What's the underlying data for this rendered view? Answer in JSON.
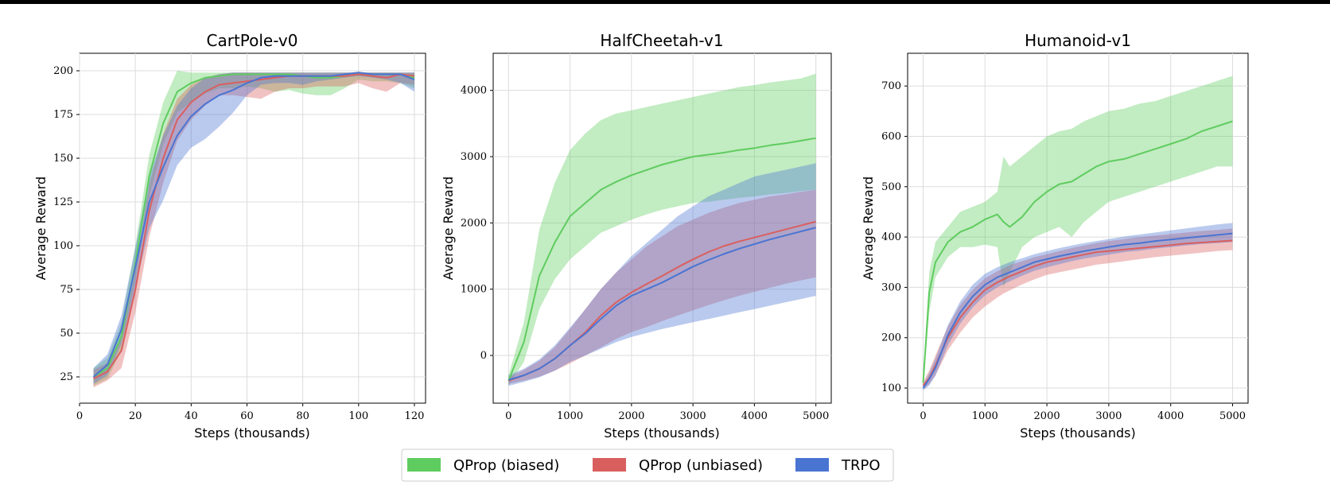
{
  "legend": {
    "placement": "bottom-center",
    "entries": [
      {
        "label": "QProp (biased)",
        "color": "#5fcc5f"
      },
      {
        "label": "QProp (unbiased)",
        "color": "#d95f5f"
      },
      {
        "label": "TRPO",
        "color": "#4a74d2"
      }
    ]
  },
  "chart_data": [
    {
      "type": "line",
      "title": "CartPole-v0",
      "xlabel": "Steps (thousands)",
      "ylabel": "Average Reward",
      "xlim": [
        0,
        124
      ],
      "ylim": [
        10,
        210
      ],
      "xticks": [
        0,
        20,
        40,
        60,
        80,
        100,
        120
      ],
      "yticks": [
        25,
        50,
        75,
        100,
        125,
        150,
        175,
        200
      ],
      "grid": true,
      "x": [
        5,
        10,
        15,
        20,
        25,
        30,
        35,
        40,
        45,
        50,
        55,
        60,
        65,
        70,
        75,
        80,
        85,
        90,
        95,
        100,
        105,
        110,
        115,
        120
      ],
      "series": [
        {
          "name": "QProp (biased)",
          "color": "#5fcc5f",
          "values": [
            25,
            30,
            48,
            90,
            140,
            170,
            188,
            193,
            196,
            197,
            198,
            198,
            198,
            198,
            198,
            197,
            196,
            196,
            197,
            198,
            198,
            198,
            198,
            196
          ],
          "lower": [
            20,
            24,
            40,
            80,
            128,
            158,
            176,
            182,
            187,
            190,
            190,
            191,
            190,
            188,
            189,
            187,
            186,
            186,
            190,
            195,
            194,
            194,
            193,
            190
          ],
          "upper": [
            30,
            36,
            56,
            100,
            152,
            182,
            200,
            199,
            199,
            199,
            199,
            199,
            199,
            199,
            199,
            199,
            199,
            199,
            199,
            199,
            199,
            199,
            199,
            199
          ]
        },
        {
          "name": "QProp (unbiased)",
          "color": "#d95f5f",
          "values": [
            24,
            28,
            40,
            75,
            120,
            150,
            172,
            182,
            188,
            192,
            193,
            194,
            195,
            196,
            197,
            197,
            197,
            197,
            197,
            198,
            197,
            196,
            198,
            197
          ],
          "lower": [
            19,
            23,
            30,
            62,
            105,
            136,
            160,
            172,
            180,
            186,
            186,
            185,
            184,
            188,
            190,
            190,
            191,
            191,
            191,
            193,
            190,
            188,
            193,
            192
          ],
          "upper": [
            29,
            33,
            48,
            85,
            135,
            164,
            184,
            192,
            196,
            198,
            199,
            199,
            199,
            199,
            199,
            199,
            199,
            199,
            199,
            199,
            199,
            199,
            199,
            199
          ]
        },
        {
          "name": "TRPO",
          "color": "#4a74d2",
          "values": [
            25,
            32,
            52,
            88,
            125,
            145,
            163,
            174,
            181,
            186,
            189,
            193,
            196,
            197,
            197,
            197,
            197,
            197,
            198,
            199,
            198,
            198,
            198,
            195
          ],
          "lower": [
            21,
            26,
            44,
            76,
            110,
            126,
            146,
            156,
            161,
            168,
            176,
            186,
            192,
            193,
            193,
            192,
            194,
            195,
            196,
            197,
            196,
            195,
            193,
            188
          ],
          "upper": [
            30,
            38,
            60,
            99,
            140,
            163,
            180,
            190,
            196,
            198,
            199,
            199,
            199,
            199,
            199,
            199,
            199,
            199,
            199,
            199,
            199,
            199,
            199,
            199
          ]
        }
      ]
    },
    {
      "type": "line",
      "title": "HalfCheetah-v1",
      "xlabel": "Steps (thousands)",
      "ylabel": "Average Reward",
      "xlim": [
        -250,
        5250
      ],
      "ylim": [
        -720,
        4560
      ],
      "xticks": [
        0,
        1000,
        2000,
        3000,
        4000,
        5000
      ],
      "yticks": [
        0,
        1000,
        2000,
        3000,
        4000
      ],
      "grid": true,
      "x": [
        0,
        250,
        500,
        750,
        1000,
        1250,
        1500,
        1750,
        2000,
        2250,
        2500,
        2750,
        3000,
        3250,
        3500,
        3750,
        4000,
        4250,
        4500,
        4750,
        5000
      ],
      "series": [
        {
          "name": "QProp (biased)",
          "color": "#5fcc5f",
          "values": [
            -380,
            200,
            1200,
            1700,
            2100,
            2300,
            2500,
            2620,
            2720,
            2800,
            2880,
            2940,
            3000,
            3030,
            3060,
            3100,
            3130,
            3170,
            3200,
            3240,
            3280
          ],
          "lower": [
            -450,
            -100,
            700,
            1150,
            1450,
            1650,
            1850,
            1950,
            2050,
            2130,
            2200,
            2250,
            2300,
            2320,
            2350,
            2380,
            2400,
            2430,
            2450,
            2480,
            2500
          ],
          "upper": [
            -300,
            500,
            1900,
            2600,
            3100,
            3350,
            3550,
            3650,
            3700,
            3750,
            3800,
            3850,
            3900,
            3950,
            4000,
            4050,
            4080,
            4120,
            4150,
            4180,
            4250
          ]
        },
        {
          "name": "QProp (unbiased)",
          "color": "#d95f5f",
          "values": [
            -380,
            -300,
            -200,
            -50,
            150,
            350,
            600,
            800,
            950,
            1080,
            1200,
            1330,
            1450,
            1560,
            1650,
            1720,
            1780,
            1840,
            1900,
            1960,
            2020
          ],
          "lower": [
            -430,
            -380,
            -320,
            -230,
            -120,
            0,
            120,
            250,
            350,
            430,
            520,
            600,
            680,
            760,
            830,
            900,
            960,
            1020,
            1080,
            1130,
            1180
          ],
          "upper": [
            -330,
            -220,
            -80,
            120,
            400,
            700,
            1000,
            1250,
            1450,
            1650,
            1800,
            1950,
            2050,
            2150,
            2230,
            2300,
            2350,
            2400,
            2430,
            2470,
            2500
          ]
        },
        {
          "name": "TRPO",
          "color": "#4a74d2",
          "values": [
            -370,
            -300,
            -200,
            -50,
            150,
            330,
            550,
            750,
            900,
            1000,
            1100,
            1220,
            1340,
            1440,
            1530,
            1610,
            1680,
            1750,
            1810,
            1870,
            1930
          ],
          "lower": [
            -460,
            -400,
            -330,
            -230,
            -100,
            0,
            100,
            200,
            280,
            340,
            400,
            450,
            500,
            550,
            600,
            650,
            700,
            750,
            800,
            850,
            900
          ],
          "upper": [
            -300,
            -200,
            -60,
            150,
            420,
            700,
            1000,
            1250,
            1500,
            1700,
            1900,
            2100,
            2250,
            2400,
            2500,
            2600,
            2700,
            2750,
            2800,
            2850,
            2900
          ]
        }
      ]
    },
    {
      "type": "line",
      "title": "Humanoid-v1",
      "xlabel": "Steps (thousands)",
      "ylabel": "Average Reward",
      "xlim": [
        -250,
        5250
      ],
      "ylim": [
        70,
        765
      ],
      "xticks": [
        0,
        1000,
        2000,
        3000,
        4000,
        5000
      ],
      "yticks": [
        100,
        200,
        300,
        400,
        500,
        600,
        700
      ],
      "grid": true,
      "x": [
        0,
        100,
        200,
        400,
        600,
        800,
        1000,
        1200,
        1300,
        1400,
        1600,
        1800,
        2000,
        2200,
        2400,
        2600,
        2800,
        3000,
        3250,
        3500,
        3750,
        4000,
        4250,
        4500,
        4750,
        5000
      ],
      "series": [
        {
          "name": "QProp (biased)",
          "color": "#5fcc5f",
          "values": [
            110,
            290,
            350,
            390,
            410,
            420,
            435,
            445,
            430,
            420,
            440,
            470,
            490,
            505,
            510,
            525,
            540,
            550,
            555,
            565,
            575,
            585,
            595,
            610,
            620,
            630
          ],
          "lower": [
            100,
            250,
            320,
            360,
            380,
            380,
            385,
            380,
            300,
            330,
            380,
            400,
            410,
            420,
            400,
            430,
            450,
            470,
            480,
            490,
            500,
            510,
            520,
            530,
            540,
            540
          ],
          "upper": [
            125,
            330,
            390,
            420,
            450,
            460,
            470,
            490,
            560,
            540,
            560,
            580,
            600,
            610,
            615,
            630,
            640,
            650,
            655,
            665,
            670,
            680,
            690,
            700,
            710,
            720
          ]
        },
        {
          "name": "QProp (unbiased)",
          "color": "#d95f5f",
          "values": [
            105,
            120,
            145,
            200,
            240,
            270,
            295,
            310,
            316,
            322,
            332,
            342,
            350,
            355,
            360,
            365,
            370,
            372,
            375,
            378,
            381,
            384,
            387,
            389,
            391,
            393
          ],
          "lower": [
            98,
            108,
            125,
            175,
            210,
            240,
            262,
            280,
            288,
            294,
            306,
            316,
            325,
            330,
            335,
            340,
            345,
            348,
            352,
            356,
            360,
            363,
            366,
            369,
            372,
            374
          ],
          "upper": [
            112,
            135,
            165,
            222,
            265,
            295,
            318,
            332,
            338,
            344,
            352,
            360,
            366,
            372,
            378,
            383,
            388,
            392,
            396,
            400,
            403,
            406,
            409,
            412,
            414,
            417
          ]
        },
        {
          "name": "TRPO",
          "color": "#4a74d2",
          "values": [
            100,
            118,
            140,
            205,
            250,
            282,
            305,
            320,
            325,
            330,
            340,
            350,
            356,
            362,
            367,
            372,
            376,
            380,
            385,
            388,
            392,
            395,
            398,
            401,
            404,
            407
          ],
          "lower": [
            95,
            105,
            125,
            185,
            228,
            260,
            284,
            300,
            306,
            312,
            323,
            333,
            340,
            346,
            352,
            357,
            361,
            365,
            370,
            373,
            377,
            380,
            383,
            386,
            388,
            390
          ],
          "upper": [
            106,
            130,
            158,
            225,
            272,
            305,
            327,
            340,
            345,
            350,
            358,
            366,
            372,
            378,
            383,
            388,
            392,
            396,
            401,
            405,
            409,
            413,
            417,
            421,
            425,
            428
          ]
        }
      ]
    }
  ]
}
